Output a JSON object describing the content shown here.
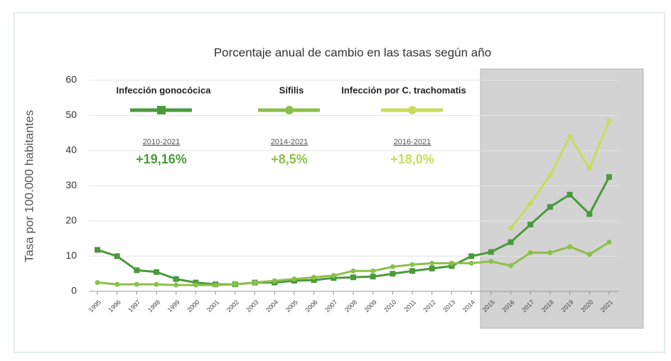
{
  "chart_data": {
    "type": "line",
    "title": "Porcentaje anual de cambio en las tasas según año",
    "y_label": "Tasa por 100.000 habitantes",
    "categories": [
      "1995",
      "1996",
      "1997",
      "1998",
      "1999",
      "2000",
      "2001",
      "2002",
      "2003",
      "2004",
      "2005",
      "2006",
      "2007",
      "2008",
      "2009",
      "2010",
      "2011",
      "2012",
      "2013",
      "2014",
      "2015",
      "2016",
      "2017",
      "2018",
      "2019",
      "2020",
      "2021"
    ],
    "series": [
      {
        "name": "Infección gonocócica",
        "color": "#4a9a3c",
        "marker": "square",
        "period": "2010-2021",
        "change": "+19,16%",
        "values": [
          11.8,
          10,
          6,
          5.5,
          3.5,
          2.5,
          2,
          2,
          2.5,
          2.5,
          3,
          3.2,
          3.8,
          4,
          4.2,
          5,
          5.8,
          6.5,
          7.2,
          10,
          11.2,
          14,
          19,
          24,
          27.5,
          22,
          32.5
        ]
      },
      {
        "name": "Sífilis",
        "color": "#8cc04a",
        "marker": "circle",
        "period": "2014-2021",
        "change": "+8,5%",
        "values": [
          2.5,
          2,
          2,
          2,
          1.8,
          1.8,
          1.8,
          2,
          2.5,
          3,
          3.5,
          4,
          4.5,
          5.8,
          5.8,
          7,
          7.6,
          8,
          8,
          8,
          8.5,
          7.3,
          11,
          11,
          12.7,
          10.5,
          14
        ]
      },
      {
        "name": "Infección por C. trachomatis",
        "color": "#c8dc5a",
        "marker": "circle",
        "period": "2016-2021",
        "change": "+18,0%",
        "values": [
          null,
          null,
          null,
          null,
          null,
          null,
          null,
          null,
          null,
          null,
          null,
          null,
          null,
          null,
          null,
          null,
          null,
          null,
          null,
          null,
          null,
          18,
          25,
          33,
          44,
          35,
          48.5
        ]
      }
    ],
    "ylim": [
      0,
      60
    ],
    "yticks": [
      0,
      10,
      20,
      30,
      40,
      50,
      60
    ],
    "grid": true
  }
}
